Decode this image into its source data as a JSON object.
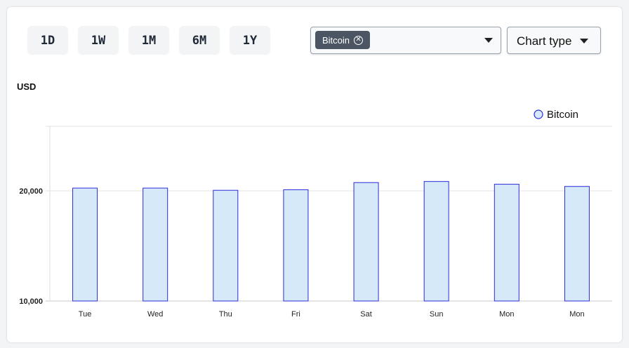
{
  "range_buttons": [
    "1D",
    "1W",
    "1M",
    "6M",
    "1Y"
  ],
  "selector": {
    "selected_chip": "Bitcoin"
  },
  "chart_type_button": {
    "label": "Chart type"
  },
  "colors": {
    "bar_fill": "#d6e9f8",
    "bar_stroke": "#2b2bd8",
    "grid": "#e3e3e3"
  },
  "chart_data": {
    "type": "bar",
    "ylabel": "USD",
    "categories": [
      "Tue",
      "Wed",
      "Thu",
      "Fri",
      "Sat",
      "Sun",
      "Mon",
      "Mon"
    ],
    "series": [
      {
        "name": "Bitcoin",
        "values": [
          20250,
          20250,
          20050,
          20100,
          20750,
          20850,
          20600,
          20400
        ]
      }
    ],
    "yticks": [
      10000,
      20000
    ],
    "ytick_labels": [
      "10,000",
      "20,000"
    ],
    "ylim": [
      10000,
      25800
    ],
    "grid": true,
    "legend": "top-right"
  }
}
